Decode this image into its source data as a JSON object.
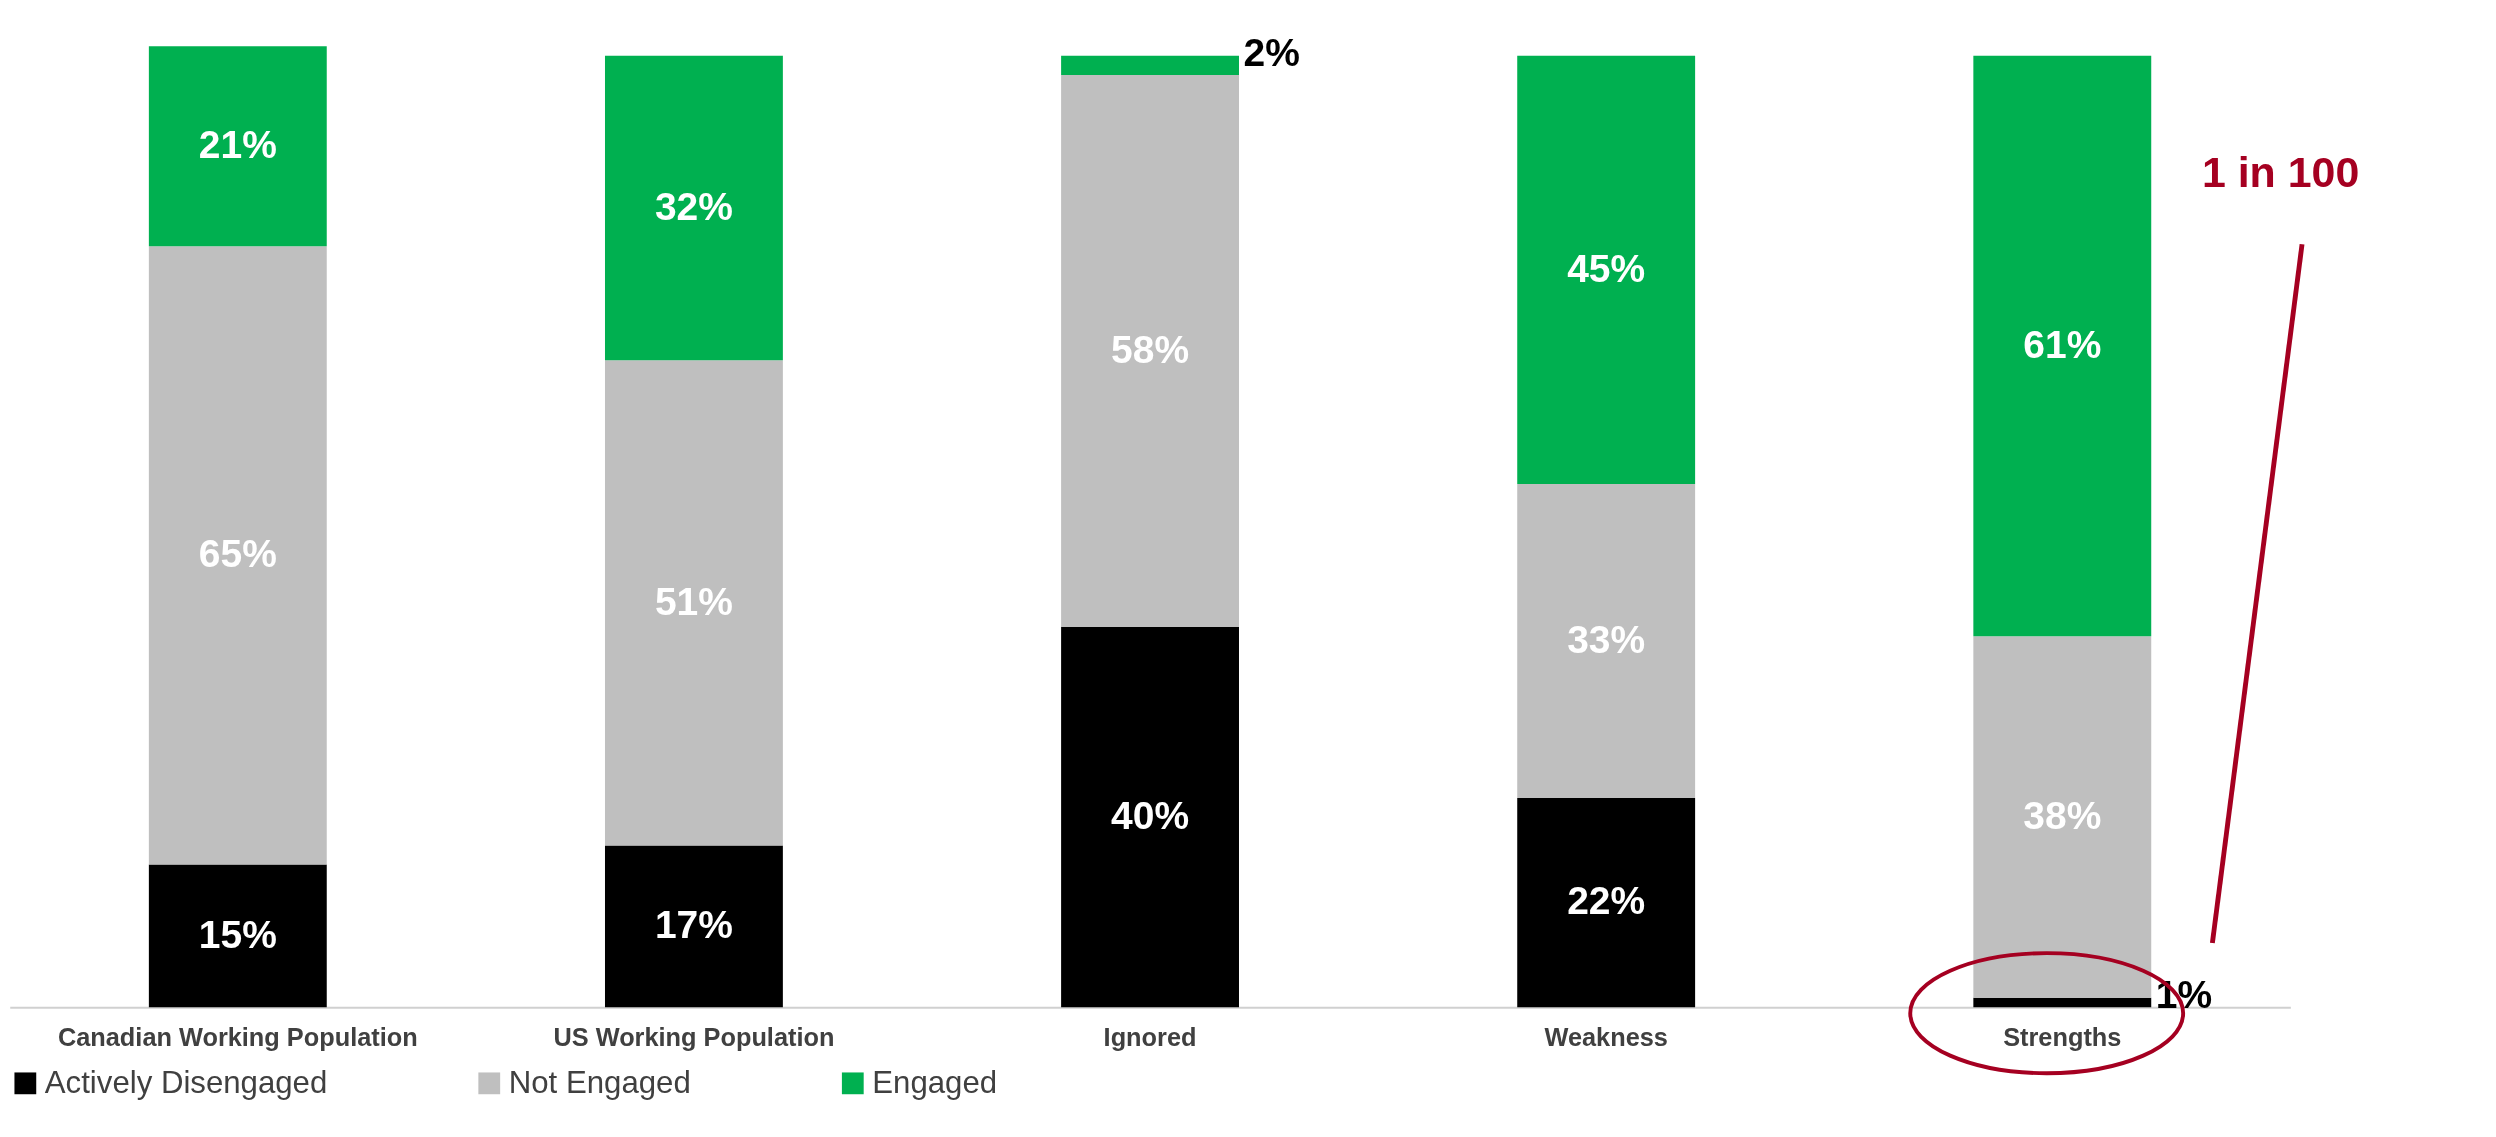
{
  "chart_data": {
    "type": "bar",
    "stacked": true,
    "categories": [
      "Canadian Working Population",
      "US Working Population",
      "Ignored",
      "Weakness",
      "Strengths"
    ],
    "series": [
      {
        "name": "Actively Disengaged",
        "color": "#000000",
        "values": [
          15,
          17,
          40,
          22,
          1
        ],
        "value_labels": [
          "15%",
          "17%",
          "40%",
          "22%",
          "1%"
        ]
      },
      {
        "name": "Not Engaged",
        "color": "#bfbfbf",
        "values": [
          65,
          51,
          58,
          33,
          38
        ],
        "value_labels": [
          "65%",
          "51%",
          "58%",
          "33%",
          "38%"
        ]
      },
      {
        "name": "Engaged",
        "color": "#00b050",
        "values": [
          21,
          32,
          2,
          45,
          61
        ],
        "value_labels": [
          "21%",
          "32%",
          "2%",
          "45%",
          "61%"
        ]
      }
    ],
    "tick_labels": "x",
    "legend": "bottom",
    "grid": false,
    "annotations": [
      "1 in 100"
    ]
  }
}
